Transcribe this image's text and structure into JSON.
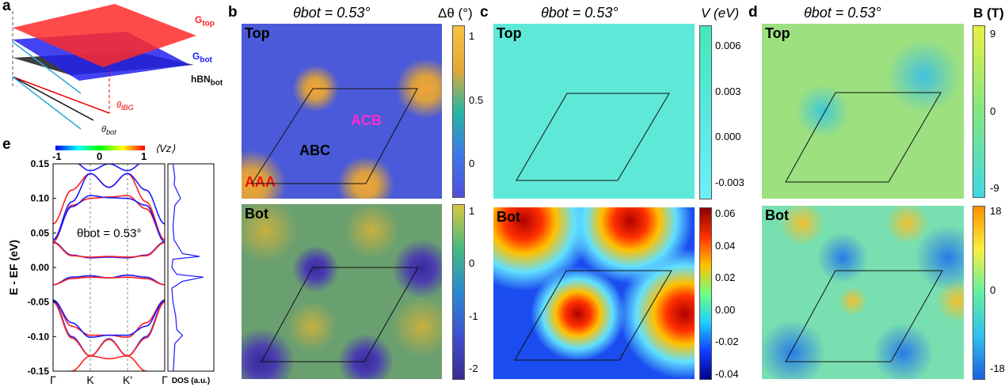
{
  "panels": {
    "a": {
      "label": "a",
      "g_top": "G",
      "g_top_sub": "top",
      "g_bot": "G",
      "g_bot_sub": "bot",
      "hbn": "hBN",
      "hbn_sub": "bot",
      "theta_tbg": "θ",
      "theta_tbg_sub": "tBG",
      "theta_bot": "θ",
      "theta_bot_sub": "bot",
      "colors": {
        "g_top": "#ff2020",
        "g_bot": "#1a1aff",
        "hbn": "#222222",
        "vector": "#29a8e0"
      }
    },
    "b": {
      "label": "b",
      "title": "θbot = 0.53°",
      "top_label": "Top",
      "bot_label": "Bot",
      "unit": "Δθ (°)",
      "annot_aaa": "AAA",
      "annot_abc": "ABC",
      "annot_acb": "ACB",
      "top_ticks": [
        "1",
        "0.5",
        "0"
      ],
      "bot_ticks": [
        "1",
        "0",
        "-1",
        "-2"
      ]
    },
    "c": {
      "label": "c",
      "title": "θbot = 0.53°",
      "top_label": "Top",
      "bot_label": "Bot",
      "unit": "V (eV)",
      "top_ticks": [
        "0.006",
        "0.003",
        "0.000",
        "-0.003"
      ],
      "bot_ticks": [
        "0.06",
        "0.04",
        "0.02",
        "0.00",
        "-0.02",
        "-0.04"
      ]
    },
    "d": {
      "label": "d",
      "title": "θbot = 0.53°",
      "top_label": "Top",
      "bot_label": "Bot",
      "unit": "B (T)",
      "top_ticks": [
        "9",
        "0",
        "-9"
      ],
      "bot_ticks": [
        "18",
        "0",
        "-18"
      ]
    },
    "e": {
      "label": "e",
      "cbar_ticks": [
        "-1",
        "0",
        "1"
      ],
      "cbar_label": "⟨Vz⟩",
      "annotation": "θbot = 0.53°",
      "dos_label": "DOS (a.u.)"
    }
  },
  "chart_data": [
    {
      "type": "line",
      "panel": "e",
      "title": "",
      "xlabel": "",
      "ylabel": "E - EF (eV)",
      "x_ticks": [
        "Γ",
        "K",
        "K'",
        "Γ"
      ],
      "ylim": [
        -0.15,
        0.15
      ],
      "y_ticks": [
        "0.15",
        "0.10",
        "0.05",
        "0.00",
        "-0.05",
        "-0.10",
        "-0.15"
      ],
      "k": [
        0,
        0.5,
        1,
        1.5,
        2,
        2.5,
        3
      ],
      "series": [
        {
          "color": "#ff2020",
          "values": [
            0.063,
            0.112,
            0.136,
            0.116,
            0.136,
            0.095,
            0.04
          ]
        },
        {
          "color": "#1a1aff",
          "values": [
            0.04,
            0.095,
            0.136,
            0.116,
            0.136,
            0.112,
            0.063
          ]
        },
        {
          "color": "#ff2020",
          "values": [
            0.037,
            0.09,
            0.1,
            0.102,
            0.104,
            0.085,
            0.04
          ]
        },
        {
          "color": "#1a1aff",
          "values": [
            0.04,
            0.088,
            0.104,
            0.101,
            0.1,
            0.09,
            0.037
          ]
        },
        {
          "color": "#1a1aff",
          "values": [
            0.037,
            0.018,
            0.014,
            0.015,
            0.014,
            0.018,
            0.037
          ]
        },
        {
          "color": "#ff2020",
          "values": [
            0.036,
            0.017,
            0.015,
            0.016,
            0.015,
            0.017,
            0.036
          ]
        },
        {
          "color": "#1a1aff",
          "values": [
            -0.025,
            -0.014,
            -0.012,
            -0.015,
            -0.011,
            -0.014,
            -0.025
          ]
        },
        {
          "color": "#ff2020",
          "values": [
            -0.025,
            -0.016,
            -0.014,
            -0.015,
            -0.014,
            -0.016,
            -0.025
          ]
        },
        {
          "color": "#ff2020",
          "values": [
            -0.047,
            -0.085,
            -0.098,
            -0.098,
            -0.101,
            -0.08,
            -0.047
          ]
        },
        {
          "color": "#1a1aff",
          "values": [
            -0.047,
            -0.08,
            -0.101,
            -0.098,
            -0.098,
            -0.085,
            -0.047
          ]
        },
        {
          "color": "#1a1aff",
          "values": [
            -0.048,
            -0.1,
            -0.128,
            -0.103,
            -0.128,
            -0.1,
            -0.048
          ]
        },
        {
          "color": "#ff2020",
          "values": [
            -0.05,
            -0.102,
            -0.128,
            -0.104,
            -0.128,
            -0.102,
            -0.05
          ]
        },
        {
          "color": "#ff2020",
          "values": [
            -0.16,
            -0.15,
            -0.128,
            -0.132,
            -0.128,
            -0.15,
            -0.16
          ]
        },
        {
          "color": "#1a1aff",
          "values": [
            0.16,
            0.155,
            0.14,
            0.15,
            0.14,
            0.155,
            0.16
          ]
        }
      ]
    },
    {
      "type": "line",
      "panel": "e-dos",
      "xlabel": "DOS (a.u.)",
      "ylim": [
        -0.15,
        0.15
      ],
      "energy": [
        0.15,
        0.13,
        0.12,
        0.1,
        0.09,
        0.06,
        0.04,
        0.02,
        0.016,
        0.012,
        0.0,
        -0.01,
        -0.014,
        -0.02,
        -0.03,
        -0.05,
        -0.07,
        -0.09,
        -0.098,
        -0.11,
        -0.13,
        -0.15
      ],
      "dos": [
        0.05,
        0.1,
        0.08,
        0.25,
        0.1,
        0.05,
        0.08,
        0.3,
        0.75,
        0.05,
        0.02,
        0.15,
        0.85,
        0.3,
        0.02,
        0.05,
        0.12,
        0.15,
        0.3,
        0.1,
        0.08,
        0.06
      ]
    }
  ]
}
